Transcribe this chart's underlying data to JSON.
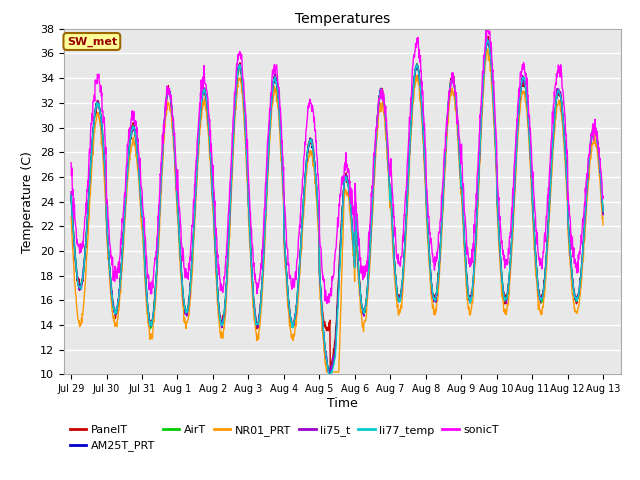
{
  "title": "Temperatures",
  "xlabel": "Time",
  "ylabel": "Temperature (C)",
  "ylim": [
    10,
    38
  ],
  "series_names": [
    "PanelT",
    "AM25T_PRT",
    "AirT",
    "NR01_PRT",
    "li75_t",
    "li77_temp",
    "sonicT"
  ],
  "series_colors": [
    "#cc0000",
    "#0000cc",
    "#00cc00",
    "#ff9900",
    "#9900cc",
    "#00cccc",
    "#ff00ff"
  ],
  "annotation_label": "SW_met",
  "annotation_bg": "#ffff99",
  "annotation_border": "#996600",
  "annotation_text_color": "#990000",
  "plot_bg_color": "#e8e8e8",
  "fig_bg_color": "#ffffff",
  "grid_color": "#ffffff",
  "tick_labels": [
    "Jul 29",
    "Jul 30",
    "Jul 31",
    "Aug 1",
    "Aug 2",
    "Aug 3",
    "Aug 4",
    "Aug 5",
    "Aug 6",
    "Aug 7",
    "Aug 8",
    "Aug 9",
    "Aug 10",
    "Aug 11",
    "Aug 12",
    "Aug 13"
  ],
  "num_days": 15,
  "pts_per_day": 96,
  "base_temps": [
    17,
    15,
    14,
    15,
    14,
    14,
    14,
    11,
    15,
    16,
    16,
    16,
    16,
    16,
    16
  ],
  "peak_temps": [
    32,
    30,
    33,
    33,
    35,
    34,
    29,
    26,
    33,
    35,
    34,
    37,
    34,
    33,
    30
  ],
  "nr01_base": [
    14,
    14,
    13,
    14,
    13,
    13,
    13,
    10,
    14,
    15,
    15,
    15,
    15,
    15,
    15
  ],
  "nr01_peak": [
    31,
    29,
    32,
    32,
    34,
    33,
    28,
    25,
    32,
    34,
    33,
    36,
    33,
    32,
    29
  ],
  "sonic_base": [
    20,
    18,
    17,
    18,
    17,
    17,
    17,
    16,
    18,
    19,
    19,
    19,
    19,
    19,
    19
  ],
  "sonic_peak": [
    34,
    31,
    33,
    34,
    36,
    35,
    32,
    27,
    33,
    37,
    34,
    38,
    35,
    35,
    30
  ]
}
